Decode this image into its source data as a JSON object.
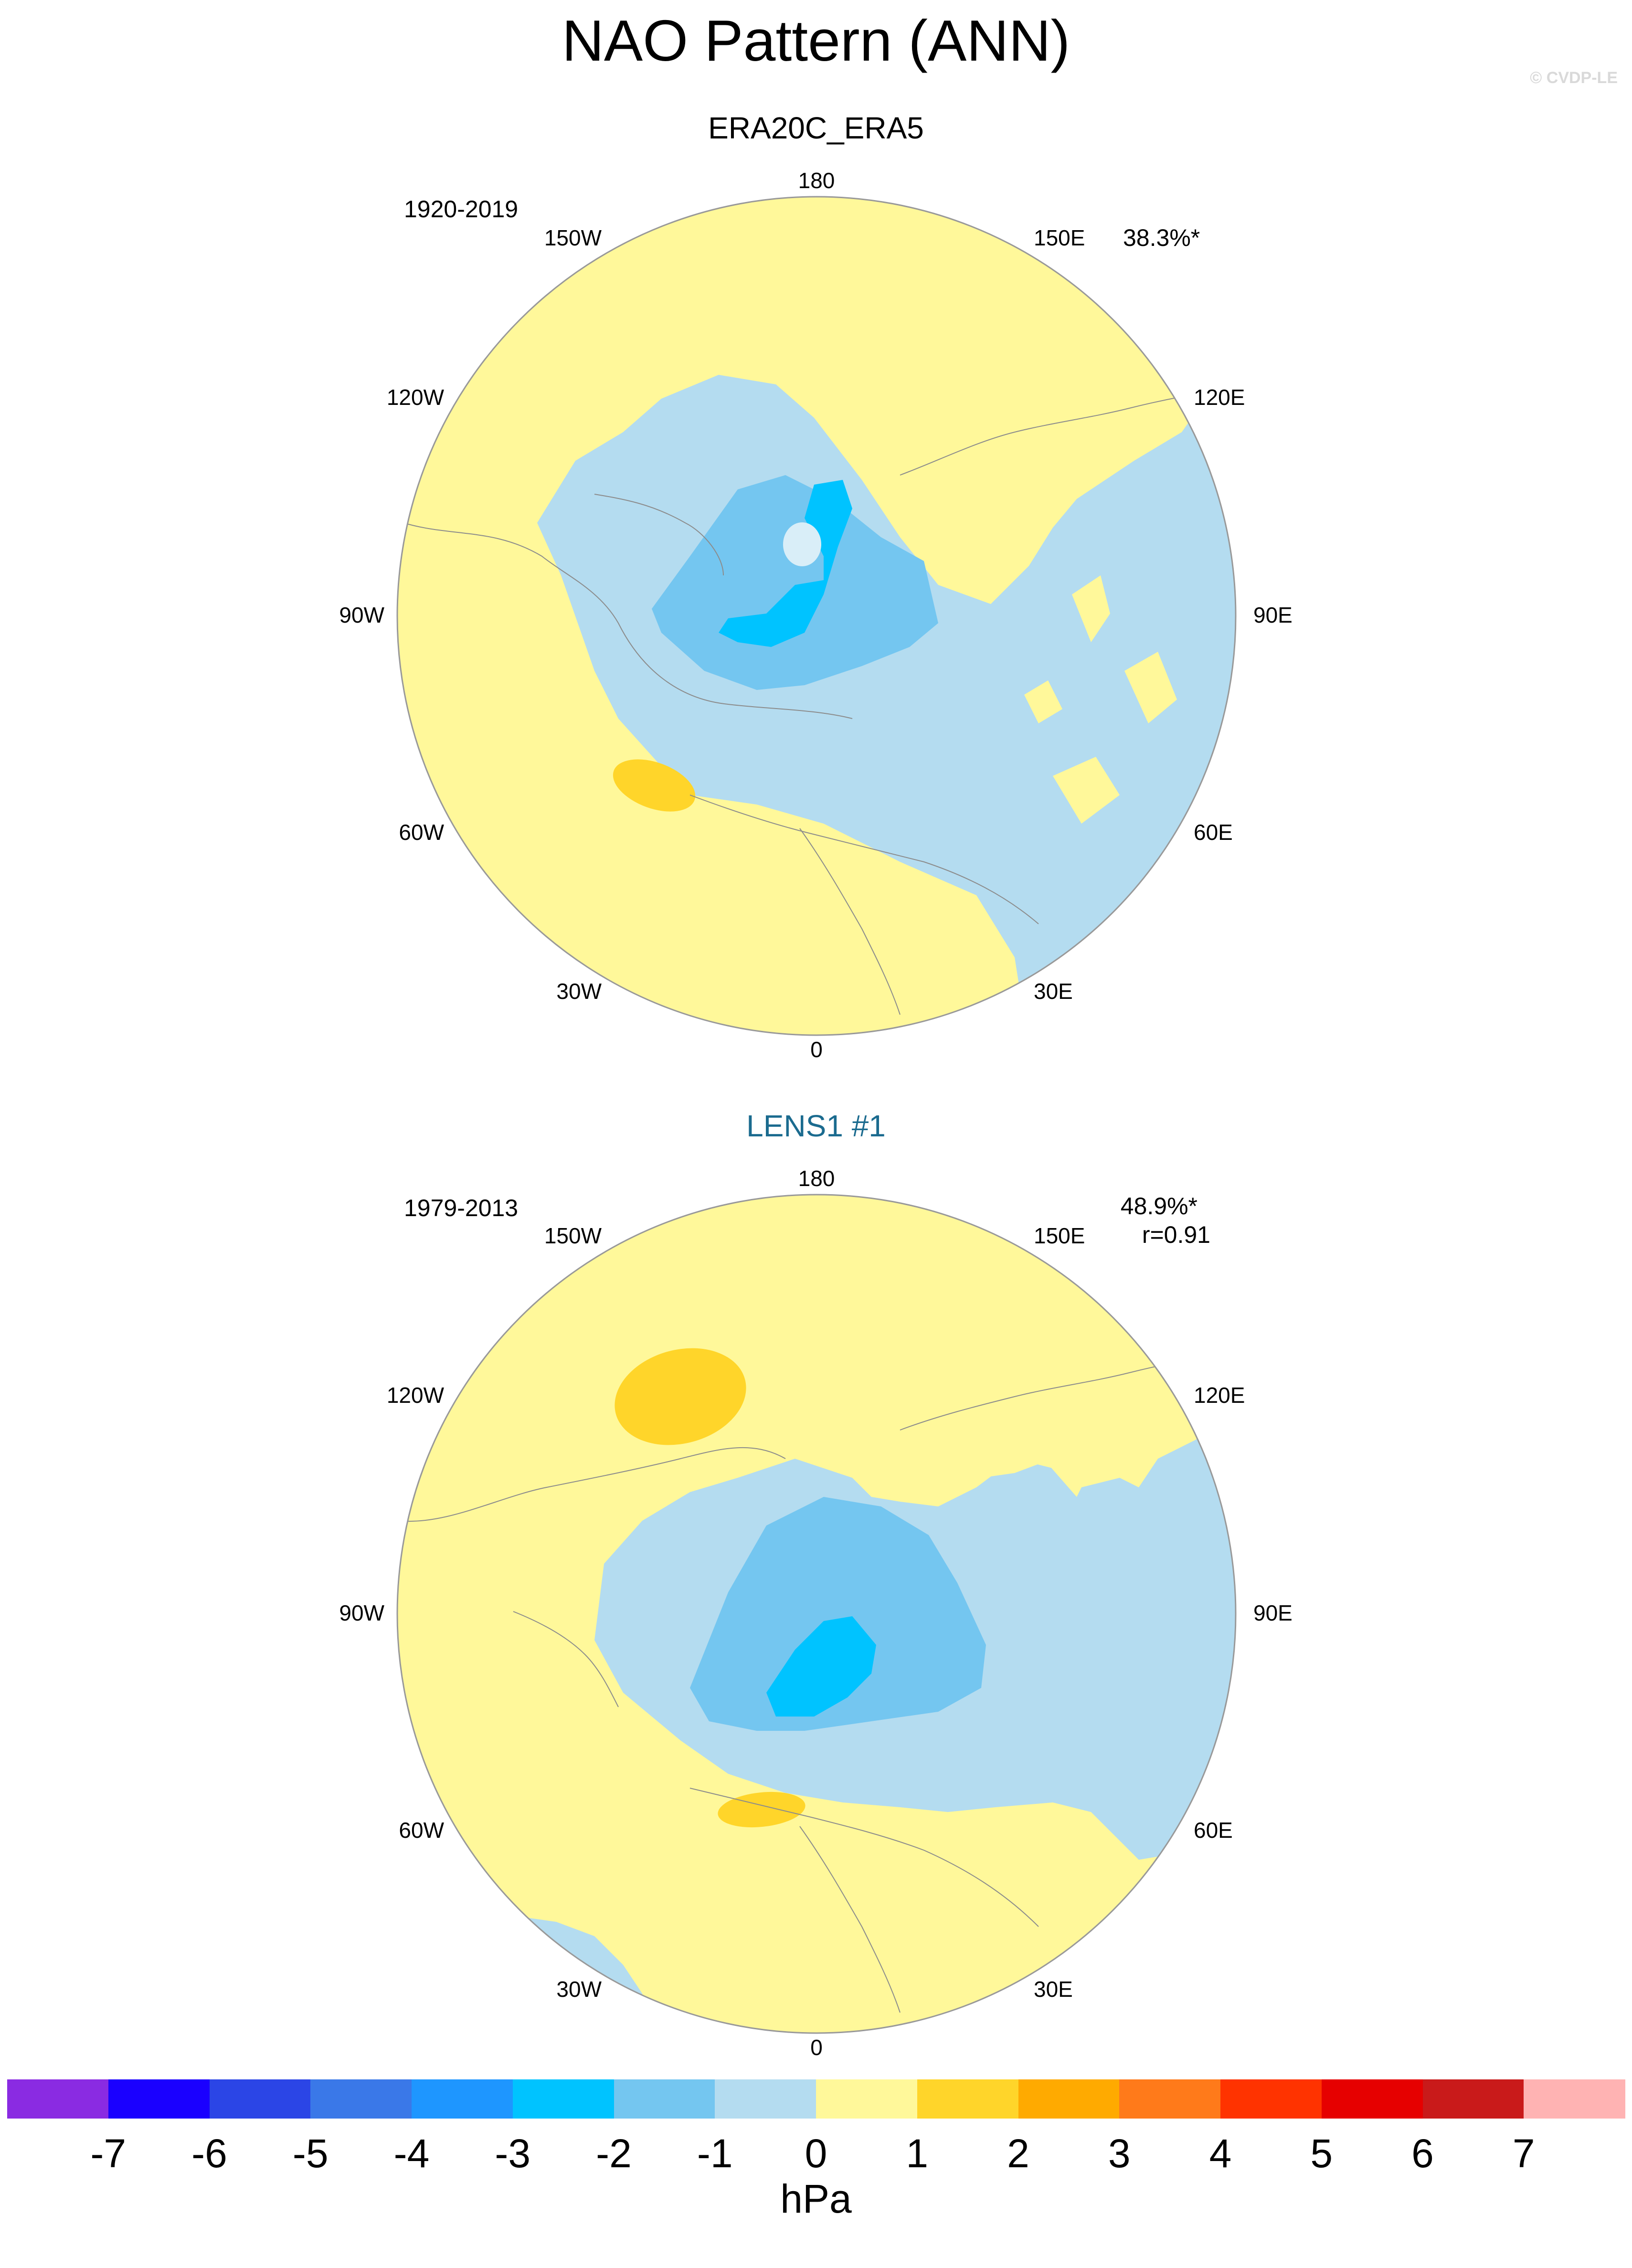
{
  "title": "NAO Pattern (ANN)",
  "watermark": "© CVDP-LE",
  "panels": [
    {
      "name": "ERA20C_ERA5",
      "title_color": "#000000",
      "period": "1920-2019",
      "stats": [
        "38.3%*"
      ],
      "lon_labels": {
        "top": "180",
        "bottom": "0",
        "left": "90W",
        "right": "90E",
        "w150": "150W",
        "e150": "150E",
        "w120": "120W",
        "e120": "120E",
        "w60": "60W",
        "e60": "60E",
        "w30": "30W",
        "e30": "30E"
      }
    },
    {
      "name": "LENS1 #1",
      "title_color": "#1b6b8f",
      "period": "1979-2013",
      "stats": [
        "48.9%*",
        "r=0.91"
      ],
      "lon_labels": {
        "top": "180",
        "bottom": "0",
        "left": "90W",
        "right": "90E",
        "w150": "150W",
        "e150": "150E",
        "w120": "120W",
        "e120": "120E",
        "w60": "60W",
        "e60": "60E",
        "w30": "30W",
        "e30": "30E"
      }
    }
  ],
  "colorbar": {
    "unit": "hPa",
    "ticks": [
      "-7",
      "-6",
      "-5",
      "-4",
      "-3",
      "-2",
      "-1",
      "0",
      "1",
      "2",
      "3",
      "4",
      "5",
      "6",
      "7"
    ],
    "colors": [
      "#8a2be2",
      "#1a00ff",
      "#2b45e6",
      "#3a78e8",
      "#1e96ff",
      "#00c3ff",
      "#74c6f0",
      "#b4dcf0",
      "#fff89a",
      "#ffd52a",
      "#ffaa00",
      "#ff7a1a",
      "#ff3300",
      "#e60000",
      "#c91a1a",
      "#ffb3b3"
    ]
  }
}
